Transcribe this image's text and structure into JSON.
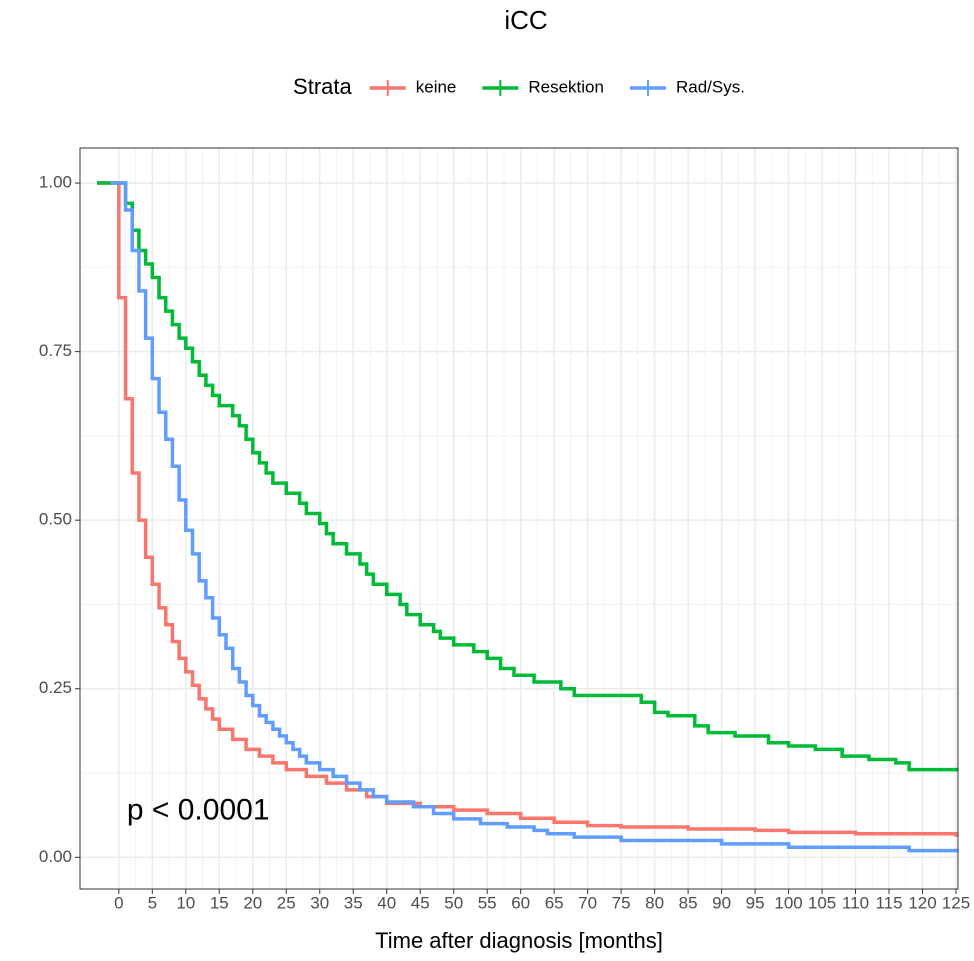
{
  "chart_data": {
    "type": "step",
    "title": "iCC",
    "legend_title": "Strata",
    "legend_position": "top",
    "x_label": "Time after diagnosis [months]",
    "annotation": "p < 0.0001",
    "grid": true,
    "xlim": [
      -5.8,
      125.3
    ],
    "ylim": [
      -0.047,
      1.052
    ],
    "xticks": [
      0,
      5,
      10,
      15,
      20,
      25,
      30,
      35,
      40,
      45,
      50,
      55,
      60,
      65,
      70,
      75,
      80,
      85,
      90,
      95,
      100,
      105,
      110,
      115,
      120,
      125
    ],
    "yticks": [
      {
        "value": 0,
        "label": "0.00"
      },
      0.25,
      {
        "value": 0.5,
        "label": "0.50"
      },
      0.75,
      {
        "value": 1,
        "label": "1.00"
      }
    ],
    "series": [
      {
        "name": "keine",
        "color": "#F8766D",
        "x": [
          -3,
          0,
          1,
          2,
          3,
          4,
          5,
          6,
          7,
          8,
          9,
          10,
          11,
          12,
          13,
          14,
          15,
          17,
          19,
          21,
          23,
          25,
          28,
          31,
          34,
          37,
          40,
          45,
          50,
          55,
          60,
          65,
          70,
          75,
          85,
          95,
          100,
          110,
          125
        ],
        "values": [
          1,
          0.83,
          0.68,
          0.57,
          0.5,
          0.445,
          0.405,
          0.37,
          0.345,
          0.32,
          0.295,
          0.275,
          0.255,
          0.235,
          0.22,
          0.205,
          0.19,
          0.175,
          0.16,
          0.15,
          0.14,
          0.13,
          0.12,
          0.11,
          0.1,
          0.09,
          0.08,
          0.075,
          0.07,
          0.065,
          0.058,
          0.052,
          0.047,
          0.045,
          0.042,
          0.04,
          0.037,
          0.035,
          0.033
        ]
      },
      {
        "name": "Resektion",
        "color": "#00BA38",
        "x": [
          -3,
          1,
          2,
          3,
          4,
          5,
          6,
          7,
          8,
          9,
          10,
          11,
          12,
          13,
          14,
          15,
          17,
          18,
          19,
          20,
          21,
          22,
          23,
          25,
          27,
          28,
          30,
          31,
          32,
          34,
          36,
          37,
          38,
          40,
          42,
          43,
          45,
          47,
          48,
          50,
          53,
          55,
          57,
          59,
          62,
          66,
          68,
          78,
          80,
          82,
          86,
          88,
          92,
          97,
          100,
          104,
          108,
          112,
          116,
          118,
          125
        ],
        "values": [
          1,
          0.97,
          0.93,
          0.9,
          0.88,
          0.86,
          0.83,
          0.81,
          0.79,
          0.77,
          0.755,
          0.735,
          0.715,
          0.7,
          0.685,
          0.67,
          0.655,
          0.64,
          0.62,
          0.6,
          0.585,
          0.57,
          0.555,
          0.54,
          0.525,
          0.51,
          0.495,
          0.48,
          0.465,
          0.45,
          0.435,
          0.42,
          0.405,
          0.39,
          0.375,
          0.36,
          0.345,
          0.335,
          0.325,
          0.315,
          0.305,
          0.295,
          0.28,
          0.27,
          0.26,
          0.25,
          0.24,
          0.23,
          0.215,
          0.21,
          0.195,
          0.185,
          0.18,
          0.17,
          0.165,
          0.16,
          0.15,
          0.145,
          0.14,
          0.13,
          0.13
        ]
      },
      {
        "name": "Rad/Sys.",
        "color": "#619CFF",
        "x": [
          -1,
          1,
          2,
          3,
          4,
          5,
          6,
          7,
          8,
          9,
          10,
          11,
          12,
          13,
          14,
          15,
          16,
          17,
          18,
          19,
          20,
          21,
          22,
          23,
          24,
          25,
          26,
          27,
          28,
          30,
          32,
          34,
          36,
          38,
          40,
          44,
          47,
          50,
          54,
          58,
          62,
          64,
          68,
          75,
          90,
          100,
          118,
          125
        ],
        "values": [
          1,
          0.96,
          0.9,
          0.84,
          0.77,
          0.71,
          0.66,
          0.62,
          0.58,
          0.53,
          0.485,
          0.45,
          0.41,
          0.385,
          0.355,
          0.33,
          0.31,
          0.28,
          0.26,
          0.24,
          0.225,
          0.21,
          0.2,
          0.19,
          0.18,
          0.17,
          0.16,
          0.15,
          0.14,
          0.13,
          0.12,
          0.11,
          0.1,
          0.09,
          0.082,
          0.075,
          0.065,
          0.057,
          0.05,
          0.045,
          0.04,
          0.035,
          0.03,
          0.025,
          0.02,
          0.015,
          0.01,
          0.01
        ]
      }
    ]
  }
}
